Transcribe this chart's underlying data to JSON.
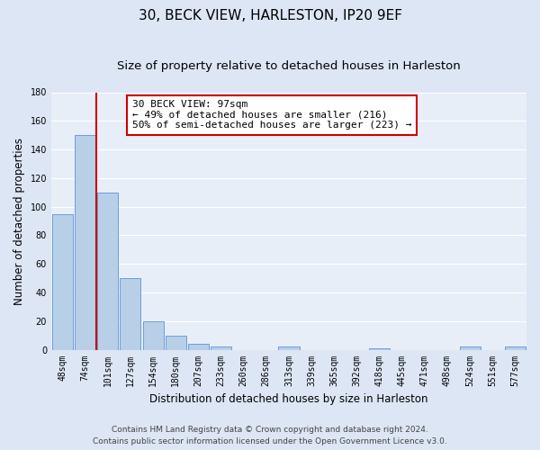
{
  "title": "30, BECK VIEW, HARLESTON, IP20 9EF",
  "subtitle": "Size of property relative to detached houses in Harleston",
  "xlabel": "Distribution of detached houses by size in Harleston",
  "ylabel": "Number of detached properties",
  "bar_labels": [
    "48sqm",
    "74sqm",
    "101sqm",
    "127sqm",
    "154sqm",
    "180sqm",
    "207sqm",
    "233sqm",
    "260sqm",
    "286sqm",
    "313sqm",
    "339sqm",
    "365sqm",
    "392sqm",
    "418sqm",
    "445sqm",
    "471sqm",
    "498sqm",
    "524sqm",
    "551sqm",
    "577sqm"
  ],
  "bar_values": [
    95,
    150,
    110,
    50,
    20,
    10,
    4,
    2,
    0,
    0,
    2,
    0,
    0,
    0,
    1,
    0,
    0,
    0,
    2,
    0,
    2
  ],
  "bar_color": "#b8cfe8",
  "bar_edge_color": "#6a9fd8",
  "vline_color": "#cc0000",
  "annotation_line1": "30 BECK VIEW: 97sqm",
  "annotation_line2": "← 49% of detached houses are smaller (216)",
  "annotation_line3": "50% of semi-detached houses are larger (223) →",
  "annotation_box_color": "#ffffff",
  "annotation_box_edge_color": "#cc0000",
  "ylim": [
    0,
    180
  ],
  "yticks": [
    0,
    20,
    40,
    60,
    80,
    100,
    120,
    140,
    160,
    180
  ],
  "footer_line1": "Contains HM Land Registry data © Crown copyright and database right 2024.",
  "footer_line2": "Contains public sector information licensed under the Open Government Licence v3.0.",
  "bg_color": "#dce6f5",
  "plot_bg_color": "#e8eef8",
  "grid_color": "#ffffff",
  "title_fontsize": 11,
  "subtitle_fontsize": 9.5,
  "axis_label_fontsize": 8.5,
  "tick_fontsize": 7,
  "annotation_fontsize": 8,
  "footer_fontsize": 6.5
}
